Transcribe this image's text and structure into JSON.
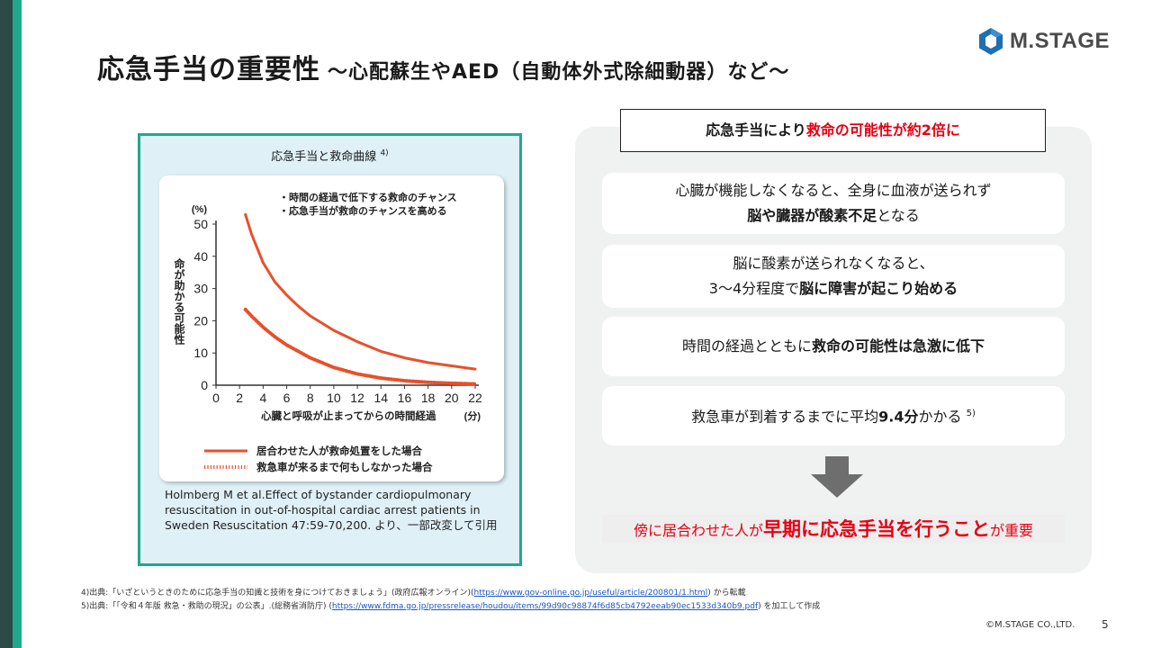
{
  "title": {
    "main": "応急手当の重要性",
    "sub": "～心配蘇生やAED（自動体外式除細動器）など～"
  },
  "logo": {
    "text": "M.STAGE",
    "color": "#1f6fb2"
  },
  "figure": {
    "title": "応急手当と救命曲線",
    "title_ref": "4)",
    "source": "Holmberg M et al.Effect of bystander cardiopulmonary resuscitation in out-of-hospital cardiac arrest patients in Sweden Resuscitation 47:59-70,200. より、一部改変して引用",
    "chart_data": {
      "type": "line",
      "ylabel": "命が助かる可能性",
      "yunit": "(%)",
      "xlabel": "心臓と呼吸が止まってからの時間経過",
      "xunit": "(分)",
      "xlim": [
        0,
        22
      ],
      "ylim": [
        0,
        50
      ],
      "xticks": [
        "0",
        "2",
        "4",
        "6",
        "8",
        "10",
        "12",
        "14",
        "16",
        "18",
        "20",
        "22"
      ],
      "yticks": [
        "0",
        "10",
        "20",
        "30",
        "40",
        "50"
      ],
      "notes": [
        "・時間の経過で低下する救命のチャンス",
        "・応急手当が救命のチャンスを高める"
      ],
      "series": [
        {
          "name": "居合わせた人が救命処置をした場合",
          "style": "solid",
          "color": "#e8502a",
          "x": [
            2.5,
            3,
            4,
            5,
            6,
            7,
            8,
            10,
            12,
            14,
            16,
            18,
            20,
            22
          ],
          "y": [
            53,
            47,
            38,
            32,
            28,
            24.5,
            21.5,
            17,
            13.5,
            10.5,
            8.5,
            7,
            6,
            5
          ]
        },
        {
          "name": "救急車が来るまで何もしなかった場合",
          "style": "dashed",
          "color": "#e8502a",
          "x": [
            2.5,
            3,
            4,
            5,
            6,
            7,
            8,
            10,
            12,
            14,
            16,
            18,
            20,
            22
          ],
          "y": [
            23.5,
            21.5,
            18,
            15,
            12.5,
            10.5,
            8.5,
            5.5,
            3.5,
            2.2,
            1.4,
            0.9,
            0.6,
            0.4
          ]
        }
      ]
    }
  },
  "headline": {
    "pre": "応急手当により",
    "emph": "救命の可能性が約2倍に"
  },
  "cards": [
    {
      "line1": "心臓が機能しなくなると、全身に血液が送られず",
      "line2_bold": "脳や臓器が酸素不足",
      "line2_rest": "となる"
    },
    {
      "line1": "脳に酸素が送られなくなると、",
      "line2_pre": "3～4分程度で",
      "line2_bold": "脳に障害が起こり始める"
    },
    {
      "pre": "時間の経過とともに",
      "bold": "救命の可能性は急激に低下"
    },
    {
      "pre": "救急車が到着するまでに平均",
      "bold": "9.4分",
      "post": "かかる",
      "ref": "5)"
    }
  ],
  "conclusion": {
    "pre": "傍に居合わせた人が",
    "big": "早期に応急手当を行うこと",
    "post": "が重要"
  },
  "footnotes": [
    {
      "pre": "4)出典:「いざというときのために応急手当の知識と技術を身につけておきましょう」(政府広報オンライン)(",
      "link": "https://www.gov-online.go.jp/useful/article/200801/1.html",
      "post": ") から転載"
    },
    {
      "pre": "5)出典:「「令和４年版 救急・救助の現況」の公表」.(総務省消防庁) (",
      "link": "https://www.fdma.go.jp/pressrelease/houdou/items/99d90c98874f6d85cb4792eeab90ec1533d340b9.pdf",
      "post": ") を加工して作成"
    }
  ],
  "copyright": "©M.STAGE CO.,LTD.",
  "page_number": "5"
}
